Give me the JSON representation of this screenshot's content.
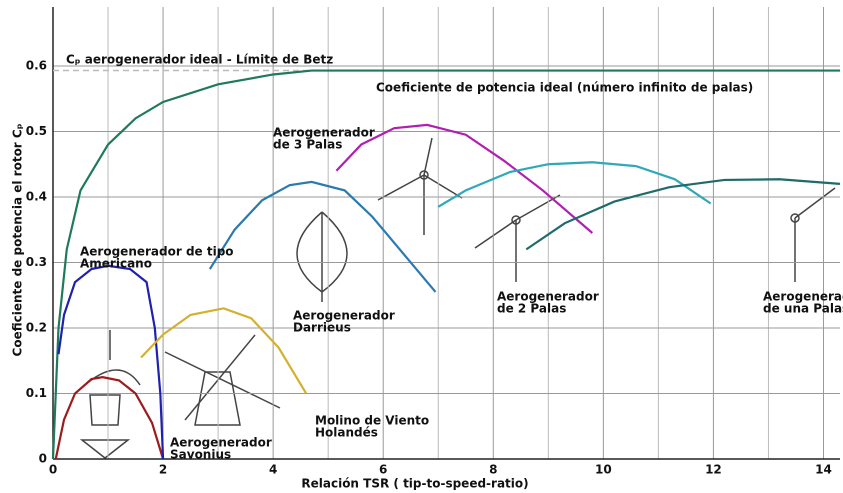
{
  "chart_data": {
    "type": "line",
    "xlabel": "Relación TSR ( tip-to-speed-ratio)",
    "ylabel": "Coeficiente de potencia el rotor Cₚ",
    "xlim": [
      0,
      14.3
    ],
    "ylim": [
      0,
      0.69
    ],
    "xticks": [
      0,
      2,
      4,
      6,
      8,
      10,
      12,
      14
    ],
    "xgrid": [
      1,
      3,
      5,
      7,
      9,
      11,
      13
    ],
    "yticks": [
      0,
      0.1,
      0.2,
      0.3,
      0.4,
      0.5,
      0.6
    ],
    "grid": true,
    "betz": {
      "value": 0.593,
      "label": "Cₚ aerogenerador ideal - Límite de Betz",
      "color": "#bbbbbb"
    },
    "annotations": [
      [
        "Coeficiente de potencia ideal (número infinito de palas)"
      ],
      [
        "Aerogenerador",
        "de 3 Palas"
      ],
      [
        "Aerogenerador de tipo",
        "Americano"
      ],
      [
        "Aerogenerador",
        "Darrieus"
      ],
      [
        "Aerogenerador",
        "de 2 Palas"
      ],
      [
        "Aerogenerador",
        "de una Palas"
      ],
      [
        "Molino de Viento",
        "Holandés"
      ],
      [
        "Aerogenerador",
        "Savonius"
      ]
    ],
    "series": [
      {
        "color": "#1f7a5a",
        "x": [
          0,
          0.1,
          0.25,
          0.5,
          1,
          1.5,
          2,
          3,
          4,
          4.7,
          14.3
        ],
        "values": [
          0,
          0.2,
          0.32,
          0.41,
          0.48,
          0.52,
          0.545,
          0.572,
          0.587,
          0.593,
          0.593
        ]
      },
      {
        "color": "#9b1c1c",
        "x": [
          0.05,
          0.2,
          0.4,
          0.7,
          0.9,
          1.2,
          1.5,
          1.8,
          2
        ],
        "values": [
          0,
          0.06,
          0.1,
          0.122,
          0.125,
          0.12,
          0.1,
          0.055,
          0
        ]
      },
      {
        "color": "#2020b0",
        "x": [
          0.1,
          0.2,
          0.4,
          0.7,
          1.0,
          1.4,
          1.7,
          1.85,
          1.95,
          2.0
        ],
        "values": [
          0.16,
          0.22,
          0.27,
          0.29,
          0.295,
          0.29,
          0.27,
          0.2,
          0.1,
          0
        ]
      },
      {
        "color": "#d4b030",
        "x": [
          1.6,
          2.0,
          2.5,
          3.1,
          3.6,
          4.1,
          4.6
        ],
        "values": [
          0.155,
          0.19,
          0.22,
          0.23,
          0.215,
          0.17,
          0.1
        ]
      },
      {
        "color": "#2a7ab0",
        "x": [
          2.85,
          3.3,
          3.8,
          4.3,
          4.7,
          5.3,
          5.8,
          6.4,
          6.95
        ],
        "values": [
          0.29,
          0.35,
          0.395,
          0.418,
          0.423,
          0.41,
          0.37,
          0.31,
          0.255
        ]
      },
      {
        "color": "#b020b0",
        "x": [
          5.15,
          5.6,
          6.2,
          6.8,
          7.5,
          8.2,
          8.9,
          9.8
        ],
        "values": [
          0.44,
          0.48,
          0.505,
          0.51,
          0.495,
          0.455,
          0.41,
          0.345
        ]
      },
      {
        "color": "#30a8b8",
        "x": [
          7.0,
          7.5,
          8.3,
          9.0,
          9.8,
          10.6,
          11.3,
          11.95
        ],
        "values": [
          0.385,
          0.41,
          0.438,
          0.45,
          0.453,
          0.447,
          0.427,
          0.39
        ]
      },
      {
        "color": "#1f6a6a",
        "x": [
          8.6,
          9.3,
          10.2,
          11.2,
          12.2,
          13.2,
          14.3
        ],
        "values": [
          0.32,
          0.36,
          0.393,
          0.415,
          0.426,
          0.427,
          0.42
        ]
      }
    ]
  }
}
